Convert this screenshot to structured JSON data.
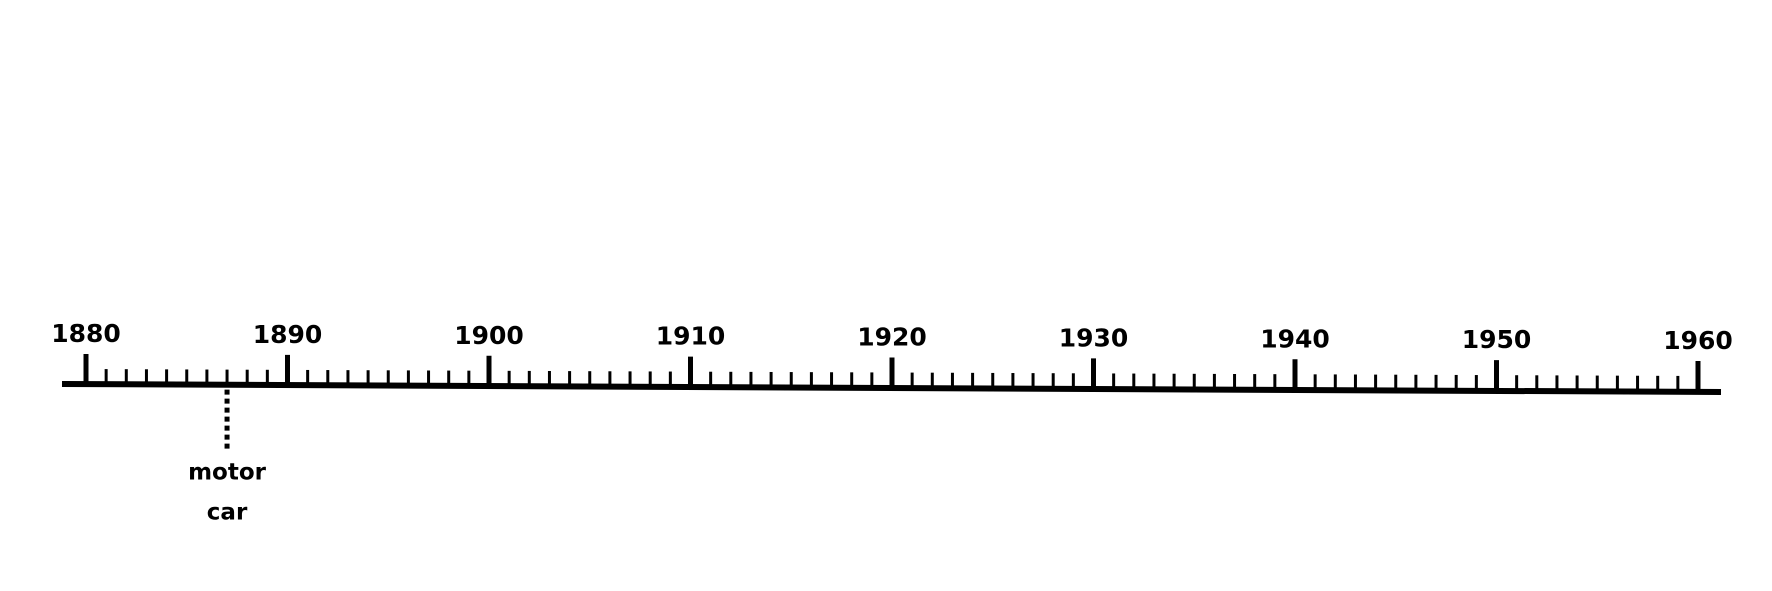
{
  "timeline": {
    "start_year": 1880,
    "end_year": 1960,
    "major_step": 10,
    "minor_step": 1,
    "labels": [
      "1880",
      "1890",
      "1900",
      "1910",
      "1920",
      "1930",
      "1940",
      "1950",
      "1960"
    ],
    "events": [
      {
        "year": 1887,
        "label_lines": [
          "motor",
          "car"
        ]
      }
    ],
    "colors": {
      "line": "#000000",
      "text": "#000000"
    }
  }
}
